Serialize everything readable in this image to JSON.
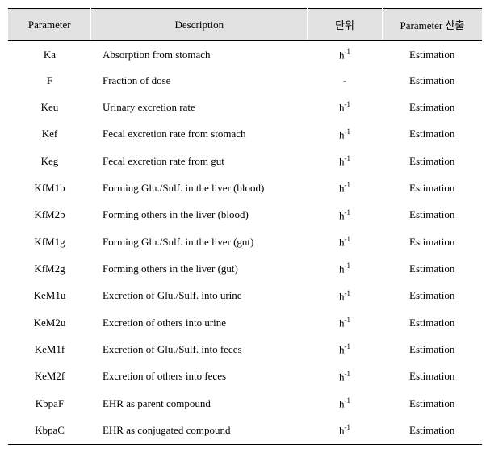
{
  "table": {
    "headers": {
      "parameter": "Parameter",
      "description": "Description",
      "unit": "단위",
      "calculation": "Parameter 산출"
    },
    "unit_h_inv_prefix": "h",
    "unit_h_inv_exp": "-1",
    "unit_dash": "-",
    "rows": [
      {
        "param": "Ka",
        "desc": "Absorption from stomach",
        "unit_type": "hinv",
        "calc": "Estimation"
      },
      {
        "param": "F",
        "desc": "Fraction of dose",
        "unit_type": "dash",
        "calc": "Estimation"
      },
      {
        "param": "Keu",
        "desc": "Urinary excretion rate",
        "unit_type": "hinv",
        "calc": "Estimation"
      },
      {
        "param": "Kef",
        "desc": "Fecal excretion rate from stomach",
        "unit_type": "hinv",
        "calc": "Estimation"
      },
      {
        "param": "Keg",
        "desc": "Fecal excretion rate from gut",
        "unit_type": "hinv",
        "calc": "Estimation"
      },
      {
        "param": "KfM1b",
        "desc": "Forming Glu./Sulf. in the liver (blood)",
        "unit_type": "hinv",
        "calc": "Estimation"
      },
      {
        "param": "KfM2b",
        "desc": "Forming others in the liver (blood)",
        "unit_type": "hinv",
        "calc": "Estimation"
      },
      {
        "param": "KfM1g",
        "desc": "Forming Glu./Sulf. in the liver (gut)",
        "unit_type": "hinv",
        "calc": "Estimation"
      },
      {
        "param": "KfM2g",
        "desc": "Forming others in the liver (gut)",
        "unit_type": "hinv",
        "calc": "Estimation"
      },
      {
        "param": "KeM1u",
        "desc": "Excretion of Glu./Sulf. into urine",
        "unit_type": "hinv",
        "calc": "Estimation"
      },
      {
        "param": "KeM2u",
        "desc": "Excretion of others into urine",
        "unit_type": "hinv",
        "calc": "Estimation"
      },
      {
        "param": "KeM1f",
        "desc": "Excretion of Glu./Sulf. into feces",
        "unit_type": "hinv",
        "calc": "Estimation"
      },
      {
        "param": "KeM2f",
        "desc": "Excretion of others into feces",
        "unit_type": "hinv",
        "calc": "Estimation"
      },
      {
        "param": "KbpaF",
        "desc": "EHR as parent compound",
        "unit_type": "hinv",
        "calc": "Estimation"
      },
      {
        "param": "KbpaC",
        "desc": "EHR as conjugated compound",
        "unit_type": "hinv",
        "calc": "Estimation"
      }
    ]
  }
}
